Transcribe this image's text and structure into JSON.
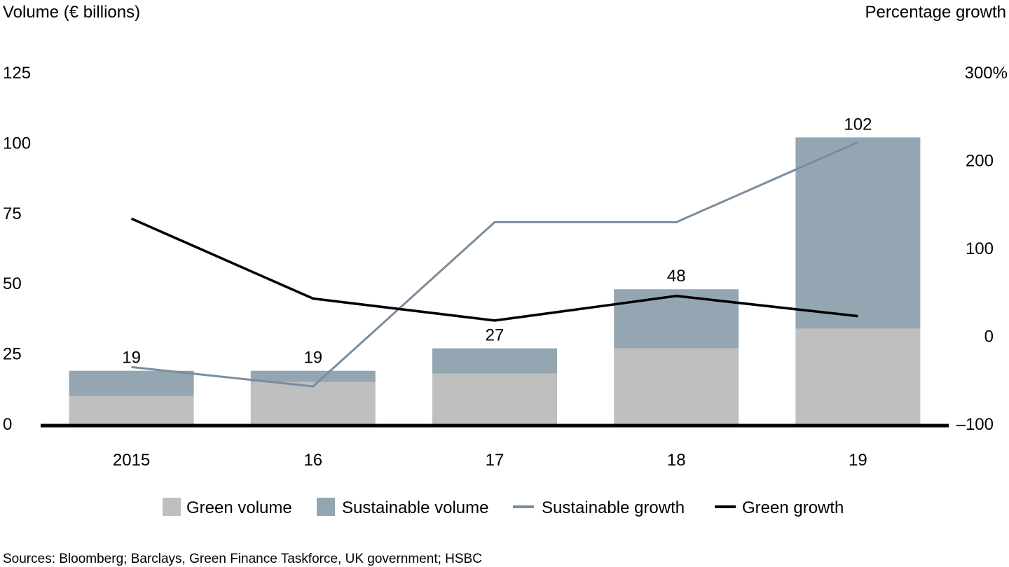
{
  "chart_data": {
    "type": "bar",
    "stacked": true,
    "categories": [
      "2015",
      "16",
      "17",
      "18",
      "19"
    ],
    "series": [
      {
        "name": "Green volume",
        "kind": "bar",
        "axis": "left",
        "color": "#bfbfc0",
        "values": [
          10,
          15,
          18,
          27,
          34
        ]
      },
      {
        "name": "Sustainable volume",
        "kind": "bar",
        "axis": "left",
        "color": "#95a6b3",
        "values": [
          9,
          4,
          9,
          21,
          68
        ]
      },
      {
        "name": "Sustainable  growth",
        "kind": "line",
        "axis": "right",
        "color": "#7b8d9c",
        "values": [
          -35,
          -57,
          130,
          130,
          221
        ]
      },
      {
        "name": "Green growth",
        "kind": "line",
        "axis": "right",
        "color": "#000000",
        "values": [
          134,
          43,
          18,
          46,
          23
        ]
      }
    ],
    "totals": [
      "19",
      "19",
      "27",
      "48",
      "102"
    ],
    "left_axis": {
      "label": "Volume (€ billions)",
      "ylim": [
        0,
        125
      ],
      "ticks": [
        "0",
        "25",
        "50",
        "75",
        "100",
        "125"
      ]
    },
    "right_axis": {
      "label": "Percentage growth",
      "ylim": [
        -100,
        300
      ],
      "ticks": [
        "–100",
        "0",
        "100",
        "200",
        "300%"
      ]
    },
    "legend_position": "bottom",
    "grid": false,
    "source": "Sources: Bloomberg; Barclays, Green Finance Taskforce, UK government; HSBC"
  }
}
